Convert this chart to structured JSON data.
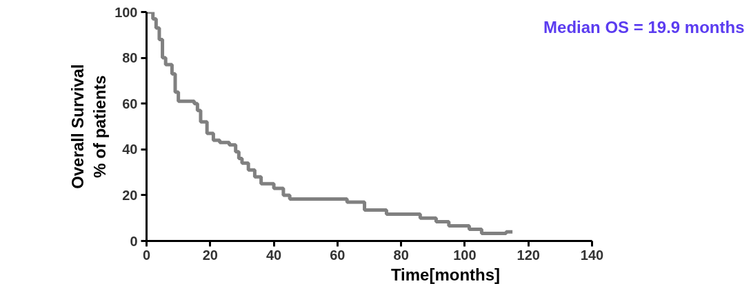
{
  "chart_data": {
    "type": "step",
    "xlabel": "Time[months]",
    "ylabel": "Overall Survival\n% of patients",
    "annotations": [
      "Median OS = 19.9 months"
    ],
    "x": [
      0,
      2,
      3,
      4,
      5,
      6,
      8,
      9,
      10,
      15,
      16,
      17,
      19,
      21,
      23,
      26,
      28,
      29,
      30,
      32,
      34,
      36,
      40,
      43,
      45,
      63,
      68.5,
      75.4,
      86,
      91,
      95,
      101.4,
      105.3,
      113,
      115
    ],
    "series": [
      {
        "color": "#808080",
        "values": [
          100,
          97,
          93,
          88,
          80,
          77,
          73,
          65,
          61,
          60,
          57,
          52,
          47,
          44,
          43,
          42,
          39,
          36,
          34,
          31,
          28,
          25,
          23,
          20,
          18.3,
          17,
          13.5,
          11.7,
          10,
          8.4,
          6.6,
          5.1,
          3.3,
          4,
          4
        ]
      }
    ],
    "xlim": [
      0,
      140
    ],
    "xticks": [
      0,
      20,
      40,
      60,
      80,
      100,
      120,
      140
    ],
    "ylim": [
      0,
      100
    ],
    "yticks": [
      0,
      20,
      40,
      60,
      80,
      100
    ],
    "grid": false,
    "line_style": "solid",
    "marker": "none"
  }
}
